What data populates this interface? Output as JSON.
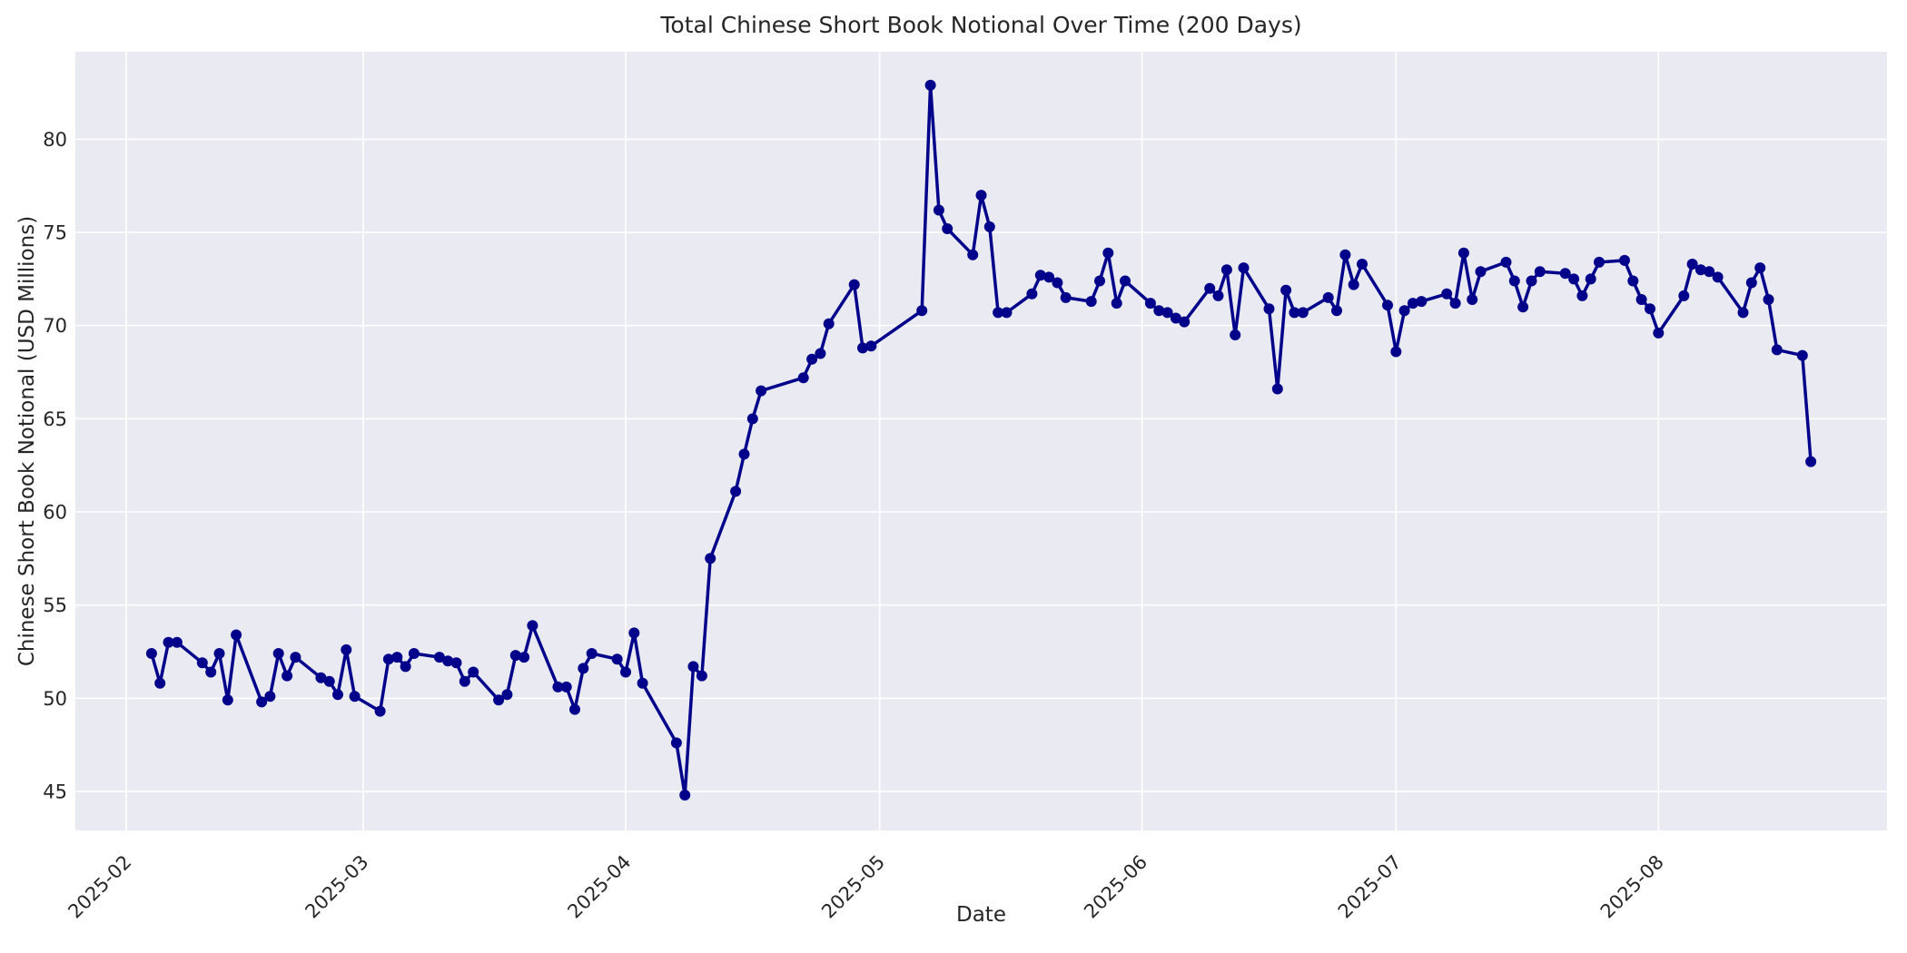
{
  "chart_data": {
    "type": "line",
    "title": "Total Chinese Short Book Notional Over Time (200 Days)",
    "xlabel": "Date",
    "ylabel": "Chinese Short Book Notional (USD Millions)",
    "legend": null,
    "grid": true,
    "axes_background_color": "#EAEAF2",
    "figure_background_color": "#FFFFFF",
    "gridline_color": "#FFFFFF",
    "line_color": "#00008B",
    "marker_color": "#00008B",
    "text_color": "#262626",
    "marker_style": "circle",
    "xlim": [
      "2025-01-26",
      "2025-08-28"
    ],
    "ylim": [
      42.9,
      84.7
    ],
    "y_ticks": [
      45,
      50,
      55,
      60,
      65,
      70,
      75,
      80
    ],
    "x_ticks": [
      {
        "label": "2025-02",
        "date": "2025-02-01"
      },
      {
        "label": "2025-03",
        "date": "2025-03-01"
      },
      {
        "label": "2025-04",
        "date": "2025-04-01"
      },
      {
        "label": "2025-05",
        "date": "2025-05-01"
      },
      {
        "label": "2025-06",
        "date": "2025-06-01"
      },
      {
        "label": "2025-07",
        "date": "2025-07-01"
      },
      {
        "label": "2025-08",
        "date": "2025-08-01"
      }
    ],
    "series": [
      {
        "name": "Total Chinese Short Book Notional",
        "points": [
          [
            "2025-02-04",
            52.4
          ],
          [
            "2025-02-05",
            50.8
          ],
          [
            "2025-02-06",
            53.0
          ],
          [
            "2025-02-07",
            53.0
          ],
          [
            "2025-02-10",
            51.9
          ],
          [
            "2025-02-11",
            51.4
          ],
          [
            "2025-02-12",
            52.4
          ],
          [
            "2025-02-13",
            49.9
          ],
          [
            "2025-02-14",
            53.4
          ],
          [
            "2025-02-17",
            49.8
          ],
          [
            "2025-02-18",
            50.1
          ],
          [
            "2025-02-19",
            52.4
          ],
          [
            "2025-02-20",
            51.2
          ],
          [
            "2025-02-21",
            52.2
          ],
          [
            "2025-02-24",
            51.1
          ],
          [
            "2025-02-25",
            50.9
          ],
          [
            "2025-02-26",
            50.2
          ],
          [
            "2025-02-27",
            52.6
          ],
          [
            "2025-02-28",
            50.1
          ],
          [
            "2025-03-03",
            49.3
          ],
          [
            "2025-03-04",
            52.1
          ],
          [
            "2025-03-05",
            52.2
          ],
          [
            "2025-03-06",
            51.7
          ],
          [
            "2025-03-07",
            52.4
          ],
          [
            "2025-03-10",
            52.2
          ],
          [
            "2025-03-11",
            52.0
          ],
          [
            "2025-03-12",
            51.9
          ],
          [
            "2025-03-13",
            50.9
          ],
          [
            "2025-03-14",
            51.4
          ],
          [
            "2025-03-17",
            49.9
          ],
          [
            "2025-03-18",
            50.2
          ],
          [
            "2025-03-19",
            52.3
          ],
          [
            "2025-03-20",
            52.2
          ],
          [
            "2025-03-21",
            53.9
          ],
          [
            "2025-03-24",
            50.6
          ],
          [
            "2025-03-25",
            50.6
          ],
          [
            "2025-03-26",
            49.4
          ],
          [
            "2025-03-27",
            51.6
          ],
          [
            "2025-03-28",
            52.4
          ],
          [
            "2025-03-31",
            52.1
          ],
          [
            "2025-04-01",
            51.4
          ],
          [
            "2025-04-02",
            53.5
          ],
          [
            "2025-04-03",
            50.8
          ],
          [
            "2025-04-07",
            47.6
          ],
          [
            "2025-04-08",
            44.8
          ],
          [
            "2025-04-09",
            51.7
          ],
          [
            "2025-04-10",
            51.2
          ],
          [
            "2025-04-11",
            57.5
          ],
          [
            "2025-04-14",
            61.1
          ],
          [
            "2025-04-15",
            63.1
          ],
          [
            "2025-04-16",
            65.0
          ],
          [
            "2025-04-17",
            66.5
          ],
          [
            "2025-04-22",
            67.2
          ],
          [
            "2025-04-23",
            68.2
          ],
          [
            "2025-04-24",
            68.5
          ],
          [
            "2025-04-25",
            70.1
          ],
          [
            "2025-04-28",
            72.2
          ],
          [
            "2025-04-29",
            68.8
          ],
          [
            "2025-04-30",
            68.9
          ],
          [
            "2025-05-06",
            70.8
          ],
          [
            "2025-05-07",
            82.9
          ],
          [
            "2025-05-08",
            76.2
          ],
          [
            "2025-05-09",
            75.2
          ],
          [
            "2025-05-12",
            73.8
          ],
          [
            "2025-05-13",
            77.0
          ],
          [
            "2025-05-14",
            75.3
          ],
          [
            "2025-05-15",
            70.7
          ],
          [
            "2025-05-16",
            70.7
          ],
          [
            "2025-05-19",
            71.7
          ],
          [
            "2025-05-20",
            72.7
          ],
          [
            "2025-05-21",
            72.6
          ],
          [
            "2025-05-22",
            72.3
          ],
          [
            "2025-05-23",
            71.5
          ],
          [
            "2025-05-26",
            71.3
          ],
          [
            "2025-05-27",
            72.4
          ],
          [
            "2025-05-28",
            73.9
          ],
          [
            "2025-05-29",
            71.2
          ],
          [
            "2025-05-30",
            72.4
          ],
          [
            "2025-06-02",
            71.2
          ],
          [
            "2025-06-03",
            70.8
          ],
          [
            "2025-06-04",
            70.7
          ],
          [
            "2025-06-05",
            70.4
          ],
          [
            "2025-06-06",
            70.2
          ],
          [
            "2025-06-09",
            72.0
          ],
          [
            "2025-06-10",
            71.6
          ],
          [
            "2025-06-11",
            73.0
          ],
          [
            "2025-06-12",
            69.5
          ],
          [
            "2025-06-13",
            73.1
          ],
          [
            "2025-06-16",
            70.9
          ],
          [
            "2025-06-17",
            66.6
          ],
          [
            "2025-06-18",
            71.9
          ],
          [
            "2025-06-19",
            70.7
          ],
          [
            "2025-06-20",
            70.7
          ],
          [
            "2025-06-23",
            71.5
          ],
          [
            "2025-06-24",
            70.8
          ],
          [
            "2025-06-25",
            73.8
          ],
          [
            "2025-06-26",
            72.2
          ],
          [
            "2025-06-27",
            73.3
          ],
          [
            "2025-06-30",
            71.1
          ],
          [
            "2025-07-01",
            68.6
          ],
          [
            "2025-07-02",
            70.8
          ],
          [
            "2025-07-03",
            71.2
          ],
          [
            "2025-07-04",
            71.3
          ],
          [
            "2025-07-07",
            71.7
          ],
          [
            "2025-07-08",
            71.2
          ],
          [
            "2025-07-09",
            73.9
          ],
          [
            "2025-07-10",
            71.4
          ],
          [
            "2025-07-11",
            72.9
          ],
          [
            "2025-07-14",
            73.4
          ],
          [
            "2025-07-15",
            72.4
          ],
          [
            "2025-07-16",
            71.0
          ],
          [
            "2025-07-17",
            72.4
          ],
          [
            "2025-07-18",
            72.9
          ],
          [
            "2025-07-21",
            72.8
          ],
          [
            "2025-07-22",
            72.5
          ],
          [
            "2025-07-23",
            71.6
          ],
          [
            "2025-07-24",
            72.5
          ],
          [
            "2025-07-25",
            73.4
          ],
          [
            "2025-07-28",
            73.5
          ],
          [
            "2025-07-29",
            72.4
          ],
          [
            "2025-07-30",
            71.4
          ],
          [
            "2025-07-31",
            70.9
          ],
          [
            "2025-08-01",
            69.6
          ],
          [
            "2025-08-04",
            71.6
          ],
          [
            "2025-08-05",
            73.3
          ],
          [
            "2025-08-06",
            73.0
          ],
          [
            "2025-08-07",
            72.9
          ],
          [
            "2025-08-08",
            72.6
          ],
          [
            "2025-08-11",
            70.7
          ],
          [
            "2025-08-12",
            72.3
          ],
          [
            "2025-08-13",
            73.1
          ],
          [
            "2025-08-14",
            71.4
          ],
          [
            "2025-08-15",
            68.7
          ],
          [
            "2025-08-18",
            68.4
          ],
          [
            "2025-08-19",
            62.7
          ]
        ]
      }
    ]
  }
}
